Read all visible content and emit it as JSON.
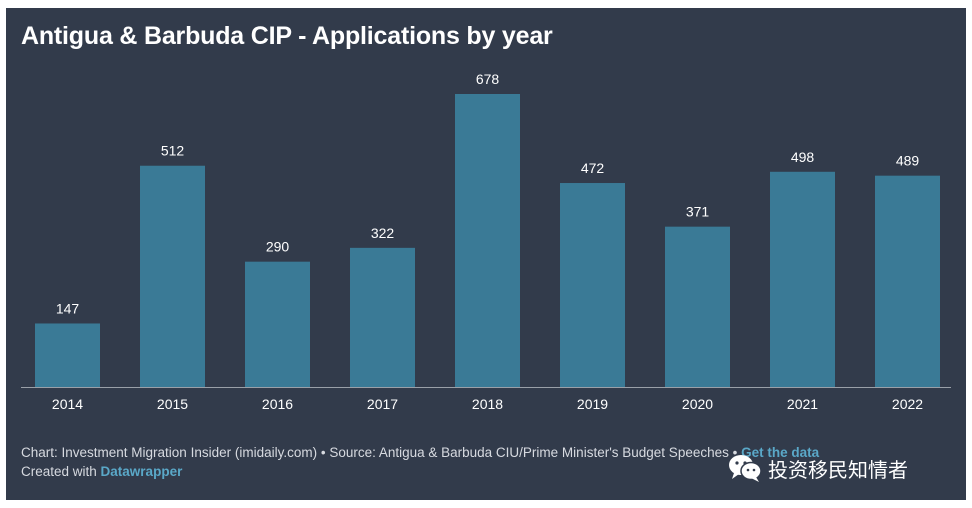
{
  "title": "Antigua & Barbuda CIP - Applications by year",
  "footer": {
    "chart_credit": "Chart: Investment Migration Insider (imidaily.com) • Source: Antigua & Barbuda CIU/Prime Minister's Budget Speeches • ",
    "data_link": "Get the data",
    "created_with_prefix": "Created with ",
    "datawrapper_link": "Datawrapper"
  },
  "watermark": {
    "icon": "wechat-icon",
    "text": "投资移民知情者"
  },
  "colors": {
    "background": "#323b4b",
    "bar": "#3a7a96",
    "link": "#5aa8c8"
  },
  "chart_data": {
    "type": "bar",
    "title": "Antigua & Barbuda CIP - Applications by year",
    "categories": [
      "2014",
      "2015",
      "2016",
      "2017",
      "2018",
      "2019",
      "2020",
      "2021",
      "2022"
    ],
    "values": [
      147,
      512,
      290,
      322,
      678,
      472,
      371,
      498,
      489
    ],
    "ylim": [
      0,
      678
    ],
    "grid": false,
    "data_labels": true,
    "legend": "none"
  }
}
